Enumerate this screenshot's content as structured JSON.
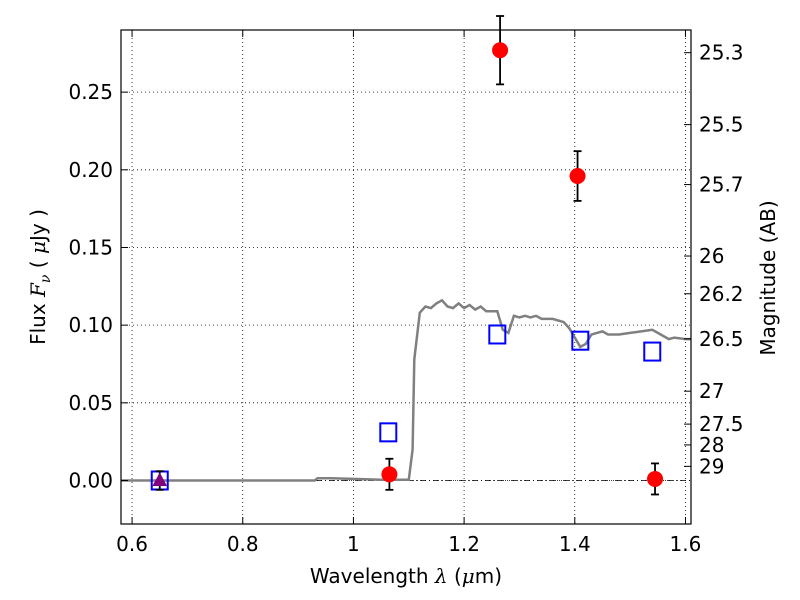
{
  "chart_data": {
    "type": "scatter",
    "title": "",
    "xlabel": "Wavelength  λ (μm)",
    "ylabel": "Flux  F_ν  ( μJy )",
    "y2label": "Magnitude (AB)",
    "xlim": [
      0.58,
      1.61
    ],
    "ylim": [
      -0.028,
      0.29
    ],
    "grid": true,
    "x_ticks": [
      {
        "value": 0.6,
        "label": "0.6"
      },
      {
        "value": 0.8,
        "label": "0.8"
      },
      {
        "value": 1.0,
        "label": "1"
      },
      {
        "value": 1.2,
        "label": "1.2"
      },
      {
        "value": 1.4,
        "label": "1.4"
      },
      {
        "value": 1.6,
        "label": "1.6"
      }
    ],
    "y_ticks": [
      {
        "value": 0.0,
        "label": "0.00"
      },
      {
        "value": 0.05,
        "label": "0.05"
      },
      {
        "value": 0.1,
        "label": "0.10"
      },
      {
        "value": 0.15,
        "label": "0.15"
      },
      {
        "value": 0.2,
        "label": "0.20"
      },
      {
        "value": 0.25,
        "label": "0.25"
      }
    ],
    "y2_ticks": [
      {
        "value": 25.3,
        "flux": 0.2754,
        "label": "25.3"
      },
      {
        "value": 25.5,
        "flux": 0.2291,
        "label": "25.5"
      },
      {
        "value": 25.7,
        "flux": 0.1905,
        "label": "25.7"
      },
      {
        "value": 26,
        "flux": 0.1445,
        "label": "26"
      },
      {
        "value": 26.2,
        "flux": 0.1202,
        "label": "26.2"
      },
      {
        "value": 26.5,
        "flux": 0.0912,
        "label": "26.5"
      },
      {
        "value": 27,
        "flux": 0.0575,
        "label": "27"
      },
      {
        "value": 27.5,
        "flux": 0.0363,
        "label": "27.5"
      },
      {
        "value": 28,
        "flux": 0.0229,
        "label": "28"
      },
      {
        "value": 29,
        "flux": 0.0091,
        "label": "29"
      }
    ],
    "series": [
      {
        "kind": "line",
        "color": "#808080",
        "points": [
          [
            0.58,
            0.0
          ],
          [
            0.93,
            0.0
          ],
          [
            0.935,
            0.0015
          ],
          [
            0.96,
            0.0015
          ],
          [
            1.0,
            0.001
          ],
          [
            1.05,
            0.0005
          ],
          [
            1.1,
            0.0005
          ],
          [
            1.107,
            0.02
          ],
          [
            1.11,
            0.078
          ],
          [
            1.12,
            0.108
          ],
          [
            1.13,
            0.112
          ],
          [
            1.14,
            0.111
          ],
          [
            1.15,
            0.114
          ],
          [
            1.16,
            0.116
          ],
          [
            1.17,
            0.112
          ],
          [
            1.18,
            0.111
          ],
          [
            1.19,
            0.114
          ],
          [
            1.2,
            0.111
          ],
          [
            1.21,
            0.113
          ],
          [
            1.22,
            0.11
          ],
          [
            1.23,
            0.112
          ],
          [
            1.24,
            0.109
          ],
          [
            1.26,
            0.109
          ],
          [
            1.27,
            0.097
          ],
          [
            1.28,
            0.095
          ],
          [
            1.29,
            0.106
          ],
          [
            1.3,
            0.105
          ],
          [
            1.31,
            0.106
          ],
          [
            1.32,
            0.105
          ],
          [
            1.33,
            0.106
          ],
          [
            1.34,
            0.104
          ],
          [
            1.36,
            0.104
          ],
          [
            1.37,
            0.103
          ],
          [
            1.38,
            0.102
          ],
          [
            1.39,
            0.098
          ],
          [
            1.4,
            0.092
          ],
          [
            1.41,
            0.086
          ],
          [
            1.42,
            0.088
          ],
          [
            1.43,
            0.094
          ],
          [
            1.44,
            0.095
          ],
          [
            1.45,
            0.096
          ],
          [
            1.46,
            0.094
          ],
          [
            1.48,
            0.094
          ],
          [
            1.5,
            0.095
          ],
          [
            1.52,
            0.096
          ],
          [
            1.54,
            0.097
          ],
          [
            1.55,
            0.095
          ],
          [
            1.56,
            0.093
          ],
          [
            1.57,
            0.091
          ],
          [
            1.58,
            0.092
          ],
          [
            1.6,
            0.091
          ],
          [
            1.61,
            0.091
          ]
        ]
      },
      {
        "kind": "square",
        "color": "#0000ff",
        "points": [
          [
            0.65,
            0.0
          ],
          [
            1.063,
            0.031
          ],
          [
            1.26,
            0.094
          ],
          [
            1.41,
            0.09
          ],
          [
            1.54,
            0.083
          ]
        ]
      },
      {
        "kind": "circle",
        "color": "#ff0000",
        "points": [
          {
            "x": 1.065,
            "y": 0.004,
            "err": 0.01
          },
          {
            "x": 1.265,
            "y": 0.277,
            "err": 0.022
          },
          {
            "x": 1.405,
            "y": 0.196,
            "err": 0.016
          },
          {
            "x": 1.545,
            "y": 0.001,
            "err": 0.01
          }
        ]
      },
      {
        "kind": "triangle",
        "color": "#800080",
        "points": [
          {
            "x": 0.65,
            "y": 0.0,
            "err": 0.006
          }
        ]
      }
    ]
  }
}
